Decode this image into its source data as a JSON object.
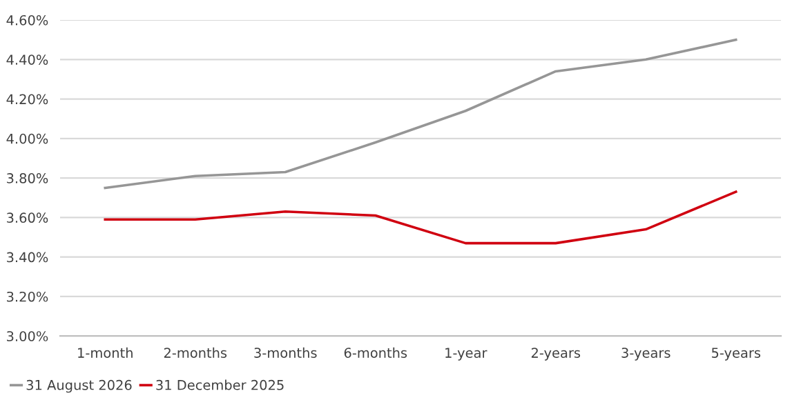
{
  "chart_data": {
    "type": "line",
    "categories": [
      "1-month",
      "2-months",
      "3-months",
      "6-months",
      "1-year",
      "2-years",
      "3-years",
      "5-years"
    ],
    "series": [
      {
        "name": "31 August 2026",
        "color": "#969696",
        "values": [
          3.75,
          3.81,
          3.83,
          3.98,
          4.14,
          4.34,
          4.4,
          4.5
        ]
      },
      {
        "name": "31 December 2025",
        "color": "#d00010",
        "values": [
          3.59,
          3.59,
          3.63,
          3.61,
          3.47,
          3.47,
          3.54,
          3.73
        ]
      }
    ],
    "ylim": [
      3.0,
      4.6
    ],
    "yticks": [
      {
        "value": 3.0,
        "label": "3.00%"
      },
      {
        "value": 3.2,
        "label": "3.20%"
      },
      {
        "value": 3.4,
        "label": "3.40%"
      },
      {
        "value": 3.6,
        "label": "3.60%"
      },
      {
        "value": 3.8,
        "label": "3.80%"
      },
      {
        "value": 4.0,
        "label": "4.00%"
      },
      {
        "value": 4.2,
        "label": "4.20%"
      },
      {
        "value": 4.4,
        "label": "4.40%"
      },
      {
        "value": 4.6,
        "label": "4.60%"
      }
    ],
    "grid": "y",
    "legend": "bottom left",
    "marker": "none",
    "line_style": "solid"
  }
}
